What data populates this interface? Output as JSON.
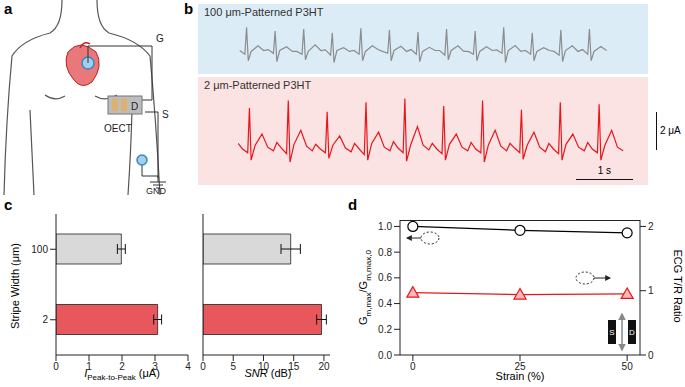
{
  "diagram": {
    "panel": "a",
    "labels": {
      "gate": "G",
      "drain": "D",
      "source": "S",
      "device": "OECT",
      "ground": "GND"
    }
  },
  "chart_data": [
    {
      "panel": "b",
      "type": "line",
      "title": "100 μm-Patterned P3HT",
      "x": [
        0.03,
        0.12,
        0.15,
        0.18,
        0.23,
        0.35,
        0.45,
        0.53,
        0.62,
        0.65,
        0.68,
        0.73,
        0.85,
        0.95,
        1.03,
        1.12,
        1.15,
        1.18,
        1.23,
        1.35,
        1.45,
        1.53,
        1.62,
        1.65,
        1.68,
        1.73,
        1.85,
        1.95,
        2.03,
        2.12,
        2.15,
        2.18,
        2.23,
        2.35,
        2.45,
        2.53,
        2.62,
        2.65,
        2.68,
        2.73,
        2.85,
        2.95,
        3.03,
        3.12,
        3.15,
        3.18,
        3.23,
        3.35,
        3.45,
        3.53,
        3.62,
        3.65,
        3.68,
        3.73,
        3.85,
        3.95,
        4.03,
        4.12,
        4.15,
        4.18,
        4.23,
        4.35,
        4.45,
        4.53,
        4.62,
        4.65,
        4.68,
        4.73,
        4.85,
        4.95,
        5.03,
        5.12,
        5.15,
        5.18,
        5.23,
        5.35,
        5.45,
        5.53,
        5.62,
        5.65,
        5.68,
        5.73,
        5.85,
        5.95,
        6.03,
        6.12,
        6.15,
        6.18,
        6.23,
        6.35,
        6.45
      ],
      "values": [
        0.05,
        -0.15,
        1.3,
        -0.5,
        0.0,
        0.3,
        0.05,
        0.1,
        -0.1,
        1.1,
        -0.55,
        0.05,
        0.25,
        0.0,
        0.0,
        -0.15,
        1.2,
        -0.45,
        0.0,
        0.35,
        0.05,
        0.08,
        -0.2,
        1.0,
        -0.6,
        0.05,
        0.2,
        0.0,
        0.05,
        -0.15,
        1.25,
        -0.5,
        0.0,
        0.3,
        0.1,
        0.0,
        -0.1,
        1.15,
        -0.5,
        0.05,
        0.28,
        0.0,
        0.1,
        -0.15,
        1.05,
        -0.55,
        0.0,
        0.22,
        0.05,
        0.05,
        -0.2,
        1.2,
        -0.45,
        0.05,
        0.3,
        0.0,
        0.0,
        -0.15,
        1.1,
        -0.5,
        0.0,
        0.25,
        0.05,
        0.08,
        -0.1,
        1.3,
        -0.6,
        0.05,
        0.32,
        0.0,
        0.05,
        -0.15,
        1.0,
        -0.5,
        0.0,
        0.2,
        0.05,
        0.0,
        -0.2,
        1.15,
        -0.55,
        0.05,
        0.3,
        0.0,
        0.1,
        -0.15,
        1.2,
        -0.5,
        0.0,
        0.27,
        0.05
      ],
      "color": "#8c8c8c",
      "xlim": [
        0,
        7
      ],
      "ylim": [
        -1,
        1.8
      ],
      "tick_labels": false
    },
    {
      "type": "line",
      "title": "2 μm-Patterned P3HT",
      "x": [
        0.0,
        0.08,
        0.17,
        0.2,
        0.23,
        0.3,
        0.42,
        0.52,
        0.62,
        0.68,
        0.76,
        0.85,
        0.88,
        0.91,
        0.98,
        1.1,
        1.2,
        1.3,
        1.36,
        1.44,
        1.53,
        1.56,
        1.59,
        1.66,
        1.78,
        1.88,
        1.98,
        2.04,
        2.12,
        2.21,
        2.24,
        2.27,
        2.34,
        2.46,
        2.56,
        2.66,
        2.72,
        2.8,
        2.89,
        2.92,
        2.95,
        3.02,
        3.14,
        3.24,
        3.34,
        3.4,
        3.48,
        3.57,
        3.6,
        3.63,
        3.7,
        3.82,
        3.92,
        4.02,
        4.08,
        4.16,
        4.25,
        4.28,
        4.31,
        4.38,
        4.5,
        4.6,
        4.7,
        4.76,
        4.84,
        4.93,
        4.96,
        4.99,
        5.06,
        5.18,
        5.28,
        5.38,
        5.44,
        5.52,
        5.61,
        5.64,
        5.67,
        5.74,
        5.86,
        5.96,
        6.06,
        6.12,
        6.2,
        6.29,
        6.32,
        6.35,
        6.42,
        6.54,
        6.64,
        6.74
      ],
      "values": [
        0.3,
        0.0,
        -0.2,
        2.2,
        -0.6,
        0.2,
        0.8,
        0.1,
        -0.1,
        0.35,
        0.05,
        -0.25,
        2.6,
        -0.7,
        0.25,
        1.0,
        0.15,
        -0.1,
        0.25,
        0.0,
        -0.2,
        2.0,
        -0.5,
        0.2,
        0.7,
        0.05,
        -0.15,
        0.3,
        0.0,
        -0.3,
        2.5,
        -0.6,
        0.3,
        0.9,
        0.1,
        -0.1,
        0.4,
        0.05,
        -0.2,
        2.7,
        -0.65,
        0.2,
        1.2,
        0.2,
        -0.05,
        0.3,
        0.0,
        -0.25,
        2.3,
        -0.6,
        0.25,
        0.8,
        0.1,
        -0.1,
        0.35,
        0.0,
        -0.2,
        2.6,
        -0.7,
        0.2,
        1.0,
        0.15,
        -0.1,
        0.3,
        0.05,
        -0.2,
        2.1,
        -0.55,
        0.2,
        0.9,
        0.1,
        -0.15,
        0.3,
        0.0,
        -0.25,
        2.5,
        -0.6,
        0.25,
        0.8,
        0.1,
        -0.1,
        0.35,
        0.0,
        -0.2,
        2.4,
        -0.6,
        0.2,
        1.0,
        0.1,
        -0.1
      ],
      "color": "#e8161b",
      "xlim": [
        0,
        7
      ],
      "ylim": [
        -1.5,
        3
      ],
      "tick_labels": false,
      "scale_bar": {
        "x": 1,
        "x_label": "1 s",
        "y": 2,
        "y_label": "2 μA"
      }
    },
    {
      "panel": "c",
      "type": "bar",
      "orientation": "horizontal",
      "y_label": "Stripe Width (μm)",
      "x_label": "IPeak-to-Peak (μA)",
      "categories": [
        "100",
        "2"
      ],
      "values": [
        1.98,
        3.08
      ],
      "errors": [
        0.12,
        0.12
      ],
      "colors": [
        "#d9d9d9",
        "#e8575c"
      ],
      "xlim": [
        0,
        4
      ],
      "xticks": [
        0,
        1,
        2,
        3,
        4
      ]
    },
    {
      "type": "bar",
      "orientation": "horizontal",
      "x_label": "SNR (dB)",
      "categories": [
        "100",
        "2"
      ],
      "values": [
        14.5,
        19.6
      ],
      "errors": [
        1.6,
        0.8
      ],
      "colors": [
        "#d9d9d9",
        "#e8575c"
      ],
      "xlim": [
        0,
        21
      ],
      "xticks": [
        0,
        5,
        10,
        15,
        20
      ],
      "tick_labels": "x"
    },
    {
      "panel": "d",
      "type": "line",
      "x_label": "Strain (%)",
      "y_label": "Gm,max/Gm,max,0",
      "y2_label": "ECG T/R Ratio",
      "x": [
        0,
        25,
        50
      ],
      "xlim": [
        -3,
        53
      ],
      "xticks": [
        0,
        25,
        50
      ],
      "ylim": [
        0,
        1.05
      ],
      "yticks": [
        {
          "value": 0,
          "label": "0.0"
        },
        0.2,
        0.4,
        0.6,
        0.8,
        {
          "value": 1,
          "label": "1.0"
        }
      ],
      "y2lim": [
        0,
        2.1
      ],
      "y2ticks": [
        0,
        1,
        2
      ],
      "series": [
        {
          "color": "#000000",
          "marker": "circle",
          "values": [
            1,
            0.97,
            0.95
          ]
        },
        {
          "color": "#e8161b",
          "marker": "triangle",
          "axis": "y2",
          "values": [
            0.97,
            0.94,
            0.95
          ]
        }
      ],
      "inset_labels": [
        "S",
        "D"
      ]
    }
  ]
}
